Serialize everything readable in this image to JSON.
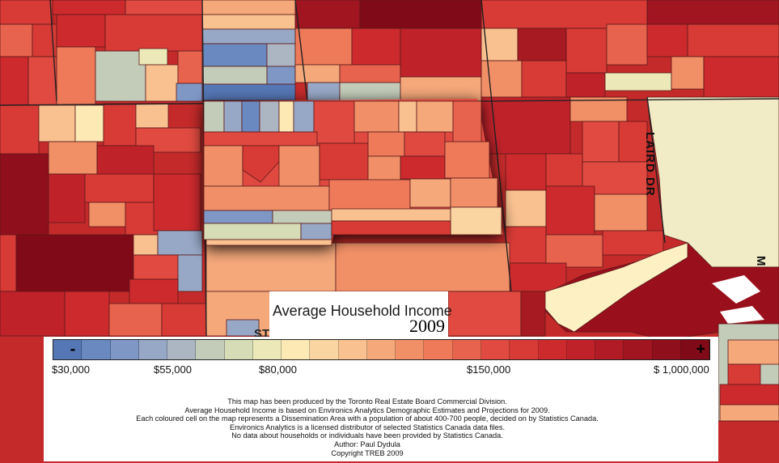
{
  "map": {
    "title": "Average Household Income",
    "year": "2009",
    "streets": {
      "laird": "LAIRD DR",
      "partial_right": "M",
      "partial_left": "ST"
    }
  },
  "legend": {
    "minus_symbol": "-",
    "plus_symbol": "+",
    "ramp_colors": [
      "#5577b5",
      "#6a89c0",
      "#7e97c5",
      "#97a8c6",
      "#acb6c3",
      "#c3cbb9",
      "#d5dcb6",
      "#ece8b7",
      "#fde9b4",
      "#fbd5a1",
      "#f9c190",
      "#f5a87a",
      "#f19067",
      "#ee7a5a",
      "#e8634d",
      "#e04a40",
      "#d83a36",
      "#cd2a2d",
      "#c0222a",
      "#b01b25",
      "#a11521",
      "#900f1c",
      "#800a17"
    ],
    "labels": [
      {
        "text": "$30,000",
        "key": "income-30000"
      },
      {
        "text": "$55,000",
        "key": "income-55000"
      },
      {
        "text": "$80,000",
        "key": "income-80000"
      },
      {
        "text": "$150,000",
        "key": "income-150000"
      },
      {
        "text": "$ 1,000,000",
        "key": "income-1000000"
      }
    ]
  },
  "credits": [
    "This map has been produced by the Toronto Real Estate Board Commercial Division.",
    "Average Household Income is based on  Environics Analytics Demographic Estimates and Projections for 2009.",
    "Each coloured cell on the map represents a Dissemination Area with a population of about 400-700 people, decided on by Statistics Canada.",
    "Environics Analytics is a licensed distributor of selected  Statistics Canada data files.",
    "No data about households or individuals have been provided by Statistics Canada.",
    "Author: Paul Dydula",
    "Copyright TREB 2009"
  ],
  "colors": {
    "very_high": "#a81a22",
    "high": "#d83a36",
    "mid_high": "#ee7a5a",
    "mid": "#f9c190",
    "low_mid": "#ece8b7",
    "low": "#97a8c6",
    "lowest": "#5577b5",
    "park": "#f1ecc6"
  }
}
